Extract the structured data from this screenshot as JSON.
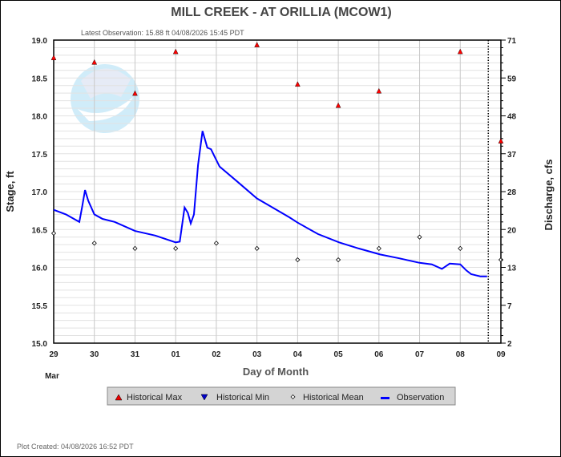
{
  "chart_data": {
    "type": "line",
    "title": "MILL CREEK - AT ORILLIA  (MCOW1)",
    "subtitle": "Latest Observation: 15.88 ft 04/08/2026 15:45 PDT",
    "xlabel": "Day of Month",
    "month_label": "Mar",
    "ylabel": "Stage, ft",
    "y2label": "Discharge, cfs",
    "ylim": [
      15.0,
      19.0
    ],
    "x_ticks": [
      "29",
      "30",
      "31",
      "01",
      "02",
      "03",
      "04",
      "05",
      "06",
      "07",
      "08",
      "09"
    ],
    "y_ticks": [
      "15.0",
      "15.5",
      "16.0",
      "16.5",
      "17.0",
      "17.5",
      "18.0",
      "18.5",
      "19.0"
    ],
    "y2_ticks": [
      "2",
      "7",
      "13",
      "20",
      "28",
      "37",
      "48",
      "59",
      "71"
    ],
    "grid": true,
    "current_time_day": 10.69,
    "legend": {
      "placement": "bottom",
      "entries": [
        "Historical Max",
        "Historical Min",
        "Historical Mean",
        "Observation"
      ]
    },
    "series": [
      {
        "name": "Historical Max",
        "marker": "triangle-up",
        "color": "#ff0000",
        "x": [
          0,
          1,
          2,
          3,
          5,
          6,
          7,
          8,
          10,
          11
        ],
        "y": [
          18.77,
          18.71,
          18.3,
          18.85,
          18.94,
          18.42,
          18.14,
          18.33,
          18.85,
          17.67
        ]
      },
      {
        "name": "Historical Min",
        "marker": "triangle-down",
        "color": "#0000cc",
        "x": [],
        "y": []
      },
      {
        "name": "Historical Mean",
        "marker": "diamond",
        "color": "#000000",
        "x": [
          0,
          1,
          2,
          3,
          4,
          5,
          6,
          7,
          8,
          9,
          10,
          11
        ],
        "y": [
          16.45,
          16.32,
          16.25,
          16.25,
          16.32,
          16.25,
          16.1,
          16.1,
          16.25,
          16.4,
          16.25,
          16.1
        ]
      },
      {
        "name": "Observation",
        "marker": "line",
        "color": "#0000ff",
        "x": [
          0,
          0.3,
          0.63,
          0.7,
          0.77,
          0.85,
          1.0,
          1.2,
          1.5,
          2.0,
          2.5,
          3.0,
          3.1,
          3.22,
          3.3,
          3.37,
          3.45,
          3.55,
          3.66,
          3.78,
          3.87,
          3.95,
          4.08,
          4.5,
          5.0,
          5.8,
          6.0,
          6.5,
          7.02,
          7.5,
          8.03,
          8.5,
          9.0,
          9.3,
          9.55,
          9.74,
          10.0,
          10.15,
          10.27,
          10.5,
          10.66
        ],
        "y": [
          16.76,
          16.7,
          16.6,
          16.8,
          17.02,
          16.88,
          16.7,
          16.64,
          16.6,
          16.48,
          16.42,
          16.33,
          16.34,
          16.79,
          16.72,
          16.58,
          16.7,
          17.35,
          17.8,
          17.58,
          17.56,
          17.47,
          17.33,
          17.14,
          16.91,
          16.66,
          16.59,
          16.44,
          16.33,
          16.25,
          16.17,
          16.12,
          16.06,
          16.04,
          15.98,
          16.05,
          16.04,
          15.96,
          15.91,
          15.88,
          15.88
        ]
      }
    ]
  },
  "logo": {
    "text": "NOAA"
  },
  "footer": {
    "created": "Plot Created: 04/08/2026 16:52 PDT"
  }
}
